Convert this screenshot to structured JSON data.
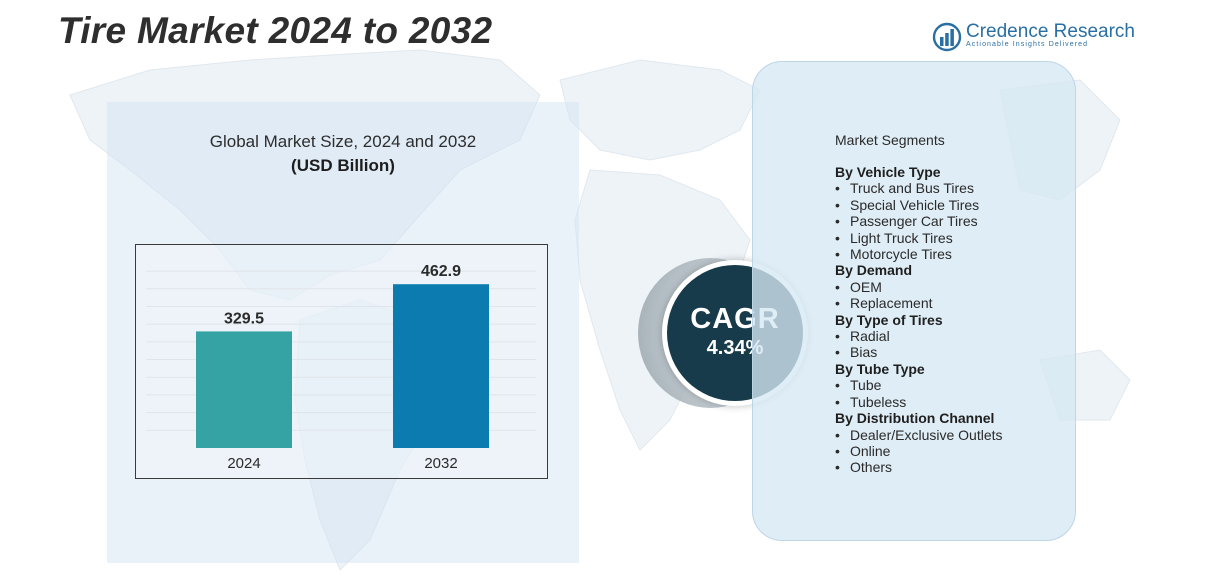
{
  "title": "Tire Market 2024 to 2032",
  "brand": {
    "name": "Credence Research",
    "tagline": "Actionable Insights Delivered",
    "color": "#2a6fa3"
  },
  "chart_section": {
    "title_line1": "Global Market Size, 2024 and 2032",
    "title_line2": "(USD Billion)"
  },
  "chart_data": {
    "type": "bar",
    "categories": [
      "2024",
      "2032"
    ],
    "values": [
      329.5,
      462.9
    ],
    "value_labels": [
      "329.5",
      "462.9"
    ],
    "colors": [
      "#35a3a3",
      "#0b7bb0"
    ],
    "title": "Global Market Size, 2024 and 2032",
    "ylabel": "(USD Billion)",
    "ylim": [
      0,
      520
    ],
    "grid": true,
    "legend": "none"
  },
  "cagr": {
    "label": "CAGR",
    "value": "4.34%",
    "color": "#173b4a"
  },
  "segments": {
    "heading": "Market Segments",
    "groups": [
      {
        "title": "By Vehicle Type",
        "items": [
          "Truck and Bus Tires",
          "Special Vehicle Tires",
          "Passenger Car Tires",
          "Light Truck Tires",
          "Motorcycle Tires"
        ]
      },
      {
        "title": "By Demand",
        "items": [
          "OEM",
          "Replacement"
        ]
      },
      {
        "title": "By Type of Tires",
        "items": [
          "Radial",
          "Bias"
        ]
      },
      {
        "title": "By Tube Type",
        "items": [
          "Tube",
          "Tubeless"
        ]
      },
      {
        "title": "By Distribution Channel",
        "items": [
          "Dealer/Exclusive Outlets",
          "Online",
          "Others"
        ]
      }
    ]
  }
}
